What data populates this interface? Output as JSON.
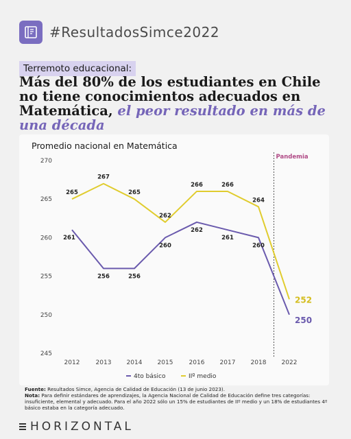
{
  "header": {
    "hashtag": "#ResultadosSimce2022",
    "logo_icon": "open-book-icon"
  },
  "tag": "Terremoto educacional:",
  "headline": {
    "main": "Más del 80% de los estudiantes en Chile no tiene conocimientos adecuados en Matemática,",
    "accent": "el peor resultado en más de una década"
  },
  "chart_title": "Promedio nacional en Matemática",
  "chart_data": {
    "type": "line",
    "title": "Promedio nacional en Matemática",
    "categories": [
      "2012",
      "2013",
      "2014",
      "2015",
      "2016",
      "2017",
      "2018",
      "2022"
    ],
    "ylim": [
      245,
      270
    ],
    "yticks": [
      245,
      250,
      255,
      260,
      265,
      270
    ],
    "grid": false,
    "legend": "bottom",
    "series": [
      {
        "name": "4to básico",
        "color": "#6a5aad",
        "values": [
          261,
          256,
          256,
          260,
          262,
          261,
          260,
          250
        ]
      },
      {
        "name": "IIº medio",
        "color": "#e0cc2e",
        "values": [
          265,
          267,
          265,
          262,
          266,
          266,
          264,
          252
        ]
      }
    ],
    "annotation": {
      "label": "Pandemia",
      "color": "#b04a86",
      "between": [
        "2018",
        "2022"
      ]
    }
  },
  "footer": {
    "source_label": "Fuente:",
    "source": "Resultados Simce, Agencia de Calidad de Educación (13 de junio 2023).",
    "note_label": "Nota:",
    "note": "Para definir estándares de aprendizajes, la Agencia Nacional de Calidad de Educación define tres categorías: insuficiente, elemental y adecuado. Para el año 2022 sólo un 15% de estudiantes de IIº medio y un 18% de estudiantes 4º básico estaba en la categoría adecuado."
  },
  "brand": "HORIZONTAL"
}
